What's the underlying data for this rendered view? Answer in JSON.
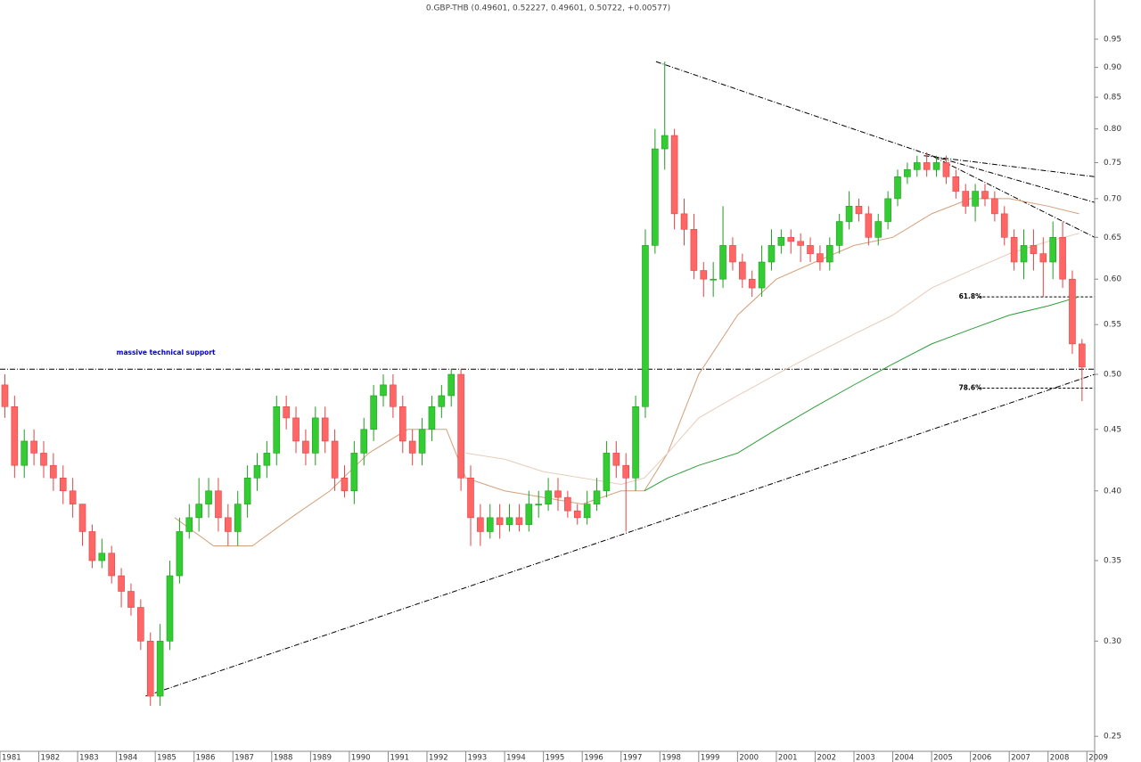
{
  "chart_data": {
    "type": "candlestick",
    "title": "0.GBP-THB (0.49601, 0.52227, 0.49601, 0.50722, +0.00577)",
    "log_scale": true,
    "up_color": "#33cc33",
    "down_color": "#ff6666",
    "xlim": [
      1981,
      2009.2
    ],
    "ylim": [
      0.238,
      1.024
    ],
    "xticks": [
      1981,
      1982,
      1983,
      1984,
      1985,
      1986,
      1987,
      1988,
      1989,
      1990,
      1991,
      1992,
      1993,
      1994,
      1995,
      1996,
      1997,
      1998,
      1999,
      2000,
      2001,
      2002,
      2003,
      2004,
      2005,
      2006,
      2007,
      2008,
      2009
    ],
    "yticks": [
      0.25,
      {
        "value": 0.3,
        "label": "0.30"
      },
      0.35,
      {
        "value": 0.4,
        "label": "0.40"
      },
      0.45,
      {
        "value": 0.5,
        "label": "0.50"
      },
      0.55,
      {
        "value": 0.6,
        "label": "0.60"
      },
      0.65,
      {
        "value": 0.7,
        "label": "0.70"
      },
      0.75,
      {
        "value": 0.8,
        "label": "0.80"
      },
      0.85,
      {
        "value": 0.9,
        "label": "0.90"
      },
      0.95
    ],
    "x": [
      1981.125,
      1981.375,
      1981.625,
      1981.875,
      1982.125,
      1982.375,
      1982.625,
      1982.875,
      1983.125,
      1983.375,
      1983.625,
      1983.875,
      1984.125,
      1984.375,
      1984.625,
      1984.875,
      1985.125,
      1985.375,
      1985.625,
      1985.875,
      1986.125,
      1986.375,
      1986.625,
      1986.875,
      1987.125,
      1987.375,
      1987.625,
      1987.875,
      1988.125,
      1988.375,
      1988.625,
      1988.875,
      1989.125,
      1989.375,
      1989.625,
      1989.875,
      1990.125,
      1990.375,
      1990.625,
      1990.875,
      1991.125,
      1991.375,
      1991.625,
      1991.875,
      1992.125,
      1992.375,
      1992.625,
      1992.875,
      1993.125,
      1993.375,
      1993.625,
      1993.875,
      1994.125,
      1994.375,
      1994.625,
      1994.875,
      1995.125,
      1995.375,
      1995.625,
      1995.875,
      1996.125,
      1996.375,
      1996.625,
      1996.875,
      1997.125,
      1997.375,
      1997.625,
      1997.875,
      1998.125,
      1998.375,
      1998.625,
      1998.875,
      1999.125,
      1999.375,
      1999.625,
      1999.875,
      2000.125,
      2000.375,
      2000.625,
      2000.875,
      2001.125,
      2001.375,
      2001.625,
      2001.875,
      2002.125,
      2002.375,
      2002.625,
      2002.875,
      2003.125,
      2003.375,
      2003.625,
      2003.875,
      2004.125,
      2004.375,
      2004.625,
      2004.875,
      2005.125,
      2005.375,
      2005.625,
      2005.875,
      2006.125,
      2006.375,
      2006.625,
      2006.875,
      2007.125,
      2007.375,
      2007.625,
      2007.875,
      2008.125,
      2008.375,
      2008.625,
      2008.875
    ],
    "open": [
      0.49,
      0.47,
      0.42,
      0.44,
      0.43,
      0.42,
      0.41,
      0.4,
      0.39,
      0.37,
      0.35,
      0.355,
      0.34,
      0.33,
      0.32,
      0.3,
      0.27,
      0.3,
      0.34,
      0.37,
      0.38,
      0.39,
      0.4,
      0.38,
      0.37,
      0.39,
      0.41,
      0.42,
      0.43,
      0.47,
      0.46,
      0.44,
      0.43,
      0.46,
      0.44,
      0.41,
      0.4,
      0.43,
      0.45,
      0.48,
      0.49,
      0.47,
      0.44,
      0.43,
      0.45,
      0.47,
      0.48,
      0.5,
      0.41,
      0.38,
      0.37,
      0.38,
      0.375,
      0.38,
      0.375,
      0.39,
      0.39,
      0.4,
      0.395,
      0.385,
      0.38,
      0.39,
      0.4,
      0.43,
      0.42,
      0.41,
      0.47,
      0.64,
      0.77,
      0.79,
      0.68,
      0.66,
      0.61,
      0.6,
      0.6,
      0.64,
      0.62,
      0.6,
      0.59,
      0.62,
      0.64,
      0.65,
      0.645,
      0.64,
      0.63,
      0.62,
      0.64,
      0.67,
      0.69,
      0.68,
      0.65,
      0.67,
      0.7,
      0.73,
      0.74,
      0.75,
      0.74,
      0.75,
      0.73,
      0.71,
      0.69,
      0.71,
      0.7,
      0.68,
      0.65,
      0.62,
      0.64,
      0.63,
      0.62,
      0.65,
      0.6,
      0.53
    ],
    "high": [
      0.5,
      0.48,
      0.45,
      0.45,
      0.44,
      0.43,
      0.42,
      0.41,
      0.39,
      0.375,
      0.365,
      0.36,
      0.345,
      0.335,
      0.325,
      0.305,
      0.31,
      0.35,
      0.38,
      0.39,
      0.41,
      0.41,
      0.41,
      0.39,
      0.4,
      0.42,
      0.43,
      0.44,
      0.48,
      0.48,
      0.47,
      0.45,
      0.47,
      0.47,
      0.45,
      0.42,
      0.44,
      0.46,
      0.49,
      0.5,
      0.5,
      0.48,
      0.45,
      0.46,
      0.48,
      0.49,
      0.505,
      0.505,
      0.42,
      0.39,
      0.39,
      0.39,
      0.39,
      0.39,
      0.4,
      0.4,
      0.41,
      0.41,
      0.4,
      0.39,
      0.4,
      0.41,
      0.44,
      0.44,
      0.43,
      0.48,
      0.66,
      0.8,
      0.91,
      0.8,
      0.7,
      0.68,
      0.62,
      0.62,
      0.69,
      0.65,
      0.63,
      0.61,
      0.64,
      0.66,
      0.66,
      0.66,
      0.655,
      0.65,
      0.64,
      0.65,
      0.68,
      0.71,
      0.7,
      0.69,
      0.68,
      0.71,
      0.74,
      0.75,
      0.76,
      0.765,
      0.76,
      0.76,
      0.74,
      0.72,
      0.72,
      0.72,
      0.71,
      0.69,
      0.66,
      0.66,
      0.66,
      0.65,
      0.67,
      0.67,
      0.61,
      0.535
    ],
    "low": [
      0.46,
      0.41,
      0.41,
      0.42,
      0.41,
      0.4,
      0.39,
      0.38,
      0.36,
      0.345,
      0.345,
      0.335,
      0.32,
      0.315,
      0.295,
      0.265,
      0.265,
      0.295,
      0.335,
      0.365,
      0.37,
      0.38,
      0.37,
      0.36,
      0.36,
      0.38,
      0.4,
      0.41,
      0.42,
      0.45,
      0.43,
      0.42,
      0.42,
      0.43,
      0.4,
      0.395,
      0.39,
      0.42,
      0.44,
      0.47,
      0.46,
      0.43,
      0.42,
      0.42,
      0.44,
      0.46,
      0.47,
      0.4,
      0.36,
      0.36,
      0.365,
      0.365,
      0.37,
      0.37,
      0.37,
      0.38,
      0.385,
      0.385,
      0.38,
      0.375,
      0.375,
      0.385,
      0.395,
      0.41,
      0.37,
      0.4,
      0.46,
      0.63,
      0.74,
      0.66,
      0.64,
      0.6,
      0.58,
      0.58,
      0.59,
      0.61,
      0.59,
      0.58,
      0.58,
      0.61,
      0.63,
      0.63,
      0.62,
      0.62,
      0.61,
      0.61,
      0.63,
      0.66,
      0.67,
      0.64,
      0.64,
      0.66,
      0.69,
      0.72,
      0.73,
      0.73,
      0.73,
      0.72,
      0.7,
      0.68,
      0.67,
      0.69,
      0.67,
      0.64,
      0.61,
      0.6,
      0.61,
      0.58,
      0.6,
      0.59,
      0.52,
      0.475
    ],
    "close": [
      0.47,
      0.42,
      0.44,
      0.43,
      0.42,
      0.41,
      0.4,
      0.39,
      0.37,
      0.35,
      0.355,
      0.34,
      0.33,
      0.32,
      0.3,
      0.27,
      0.3,
      0.34,
      0.37,
      0.38,
      0.39,
      0.4,
      0.38,
      0.37,
      0.39,
      0.41,
      0.42,
      0.43,
      0.47,
      0.46,
      0.44,
      0.43,
      0.46,
      0.44,
      0.41,
      0.4,
      0.43,
      0.45,
      0.48,
      0.49,
      0.47,
      0.44,
      0.43,
      0.45,
      0.47,
      0.48,
      0.5,
      0.41,
      0.38,
      0.37,
      0.38,
      0.375,
      0.38,
      0.375,
      0.39,
      0.39,
      0.4,
      0.395,
      0.385,
      0.38,
      0.39,
      0.4,
      0.43,
      0.42,
      0.41,
      0.47,
      0.64,
      0.77,
      0.79,
      0.68,
      0.66,
      0.61,
      0.6,
      0.6,
      0.64,
      0.62,
      0.6,
      0.59,
      0.62,
      0.64,
      0.65,
      0.645,
      0.64,
      0.63,
      0.62,
      0.64,
      0.67,
      0.69,
      0.68,
      0.65,
      0.67,
      0.7,
      0.73,
      0.74,
      0.75,
      0.74,
      0.75,
      0.73,
      0.71,
      0.69,
      0.71,
      0.7,
      0.68,
      0.65,
      0.62,
      0.64,
      0.63,
      0.62,
      0.65,
      0.6,
      0.53,
      0.507
    ],
    "moving_averages": [
      {
        "color": "#d4a07a",
        "x": [
          1985.5,
          1986.5,
          1987.5,
          1988.5,
          1989.5,
          1990.5,
          1991.5,
          1992.5,
          1993.0,
          1994.0,
          1995.0,
          1996.0,
          1997.0,
          1997.6,
          1998.2,
          1999.0,
          2000.0,
          2001.0,
          2002.0,
          2003.0,
          2004.0,
          2005.0,
          2006.0,
          2007.0,
          2008.0,
          2008.8
        ],
        "values": [
          0.38,
          0.36,
          0.36,
          0.38,
          0.4,
          0.43,
          0.45,
          0.45,
          0.41,
          0.4,
          0.395,
          0.39,
          0.4,
          0.4,
          0.43,
          0.5,
          0.56,
          0.6,
          0.62,
          0.64,
          0.65,
          0.68,
          0.7,
          0.7,
          0.69,
          0.68
        ]
      },
      {
        "color": "#e8cbb8",
        "x": [
          1993.0,
          1994.0,
          1995.0,
          1996.0,
          1997.0,
          1997.6,
          1998.2,
          1999.0,
          2000.0,
          2001.0,
          2002.0,
          2003.0,
          2004.0,
          2005.0,
          2006.0,
          2007.0,
          2008.0,
          2008.8
        ],
        "values": [
          0.43,
          0.425,
          0.415,
          0.41,
          0.405,
          0.41,
          0.43,
          0.46,
          0.48,
          0.5,
          0.52,
          0.54,
          0.56,
          0.59,
          0.61,
          0.63,
          0.645,
          0.655
        ]
      },
      {
        "color": "#2e9e3a",
        "x": [
          1997.6,
          1998.2,
          1999.0,
          2000.0,
          2001.0,
          2002.0,
          2003.0,
          2004.0,
          2005.0,
          2006.0,
          2007.0,
          2008.0,
          2008.8
        ],
        "values": [
          0.4,
          0.41,
          0.42,
          0.43,
          0.45,
          0.47,
          0.49,
          0.51,
          0.53,
          0.545,
          0.56,
          0.57,
          0.58
        ]
      }
    ],
    "trendlines": [
      {
        "x": [
          1984.75,
          2009.2
        ],
        "y": [
          0.27,
          0.5
        ]
      },
      {
        "x": [
          1997.9,
          2005.0,
          2009.2
        ],
        "y": [
          0.91,
          0.76,
          0.65
        ]
      },
      {
        "x": [
          2004.8,
          2009.2
        ],
        "y": [
          0.76,
          0.73
        ]
      },
      {
        "x": [
          2005.0,
          2009.2
        ],
        "y": [
          0.76,
          0.695
        ]
      }
    ],
    "levels": [
      {
        "value": 0.505,
        "label": "massive technical support",
        "style": "dashdot",
        "label_color": "#0000cc",
        "x": [
          1981,
          2009.2
        ],
        "label_x": 1984
      },
      {
        "value": 0.58,
        "label": "61.8%",
        "style": "dashed",
        "label_color": "#000000",
        "x": [
          2006.2,
          2009.2
        ],
        "label_x": 2005.7
      },
      {
        "value": 0.487,
        "label": "78.6%",
        "style": "dashed",
        "label_color": "#000000",
        "x": [
          2006.2,
          2009.2
        ],
        "label_x": 2005.7
      }
    ]
  }
}
